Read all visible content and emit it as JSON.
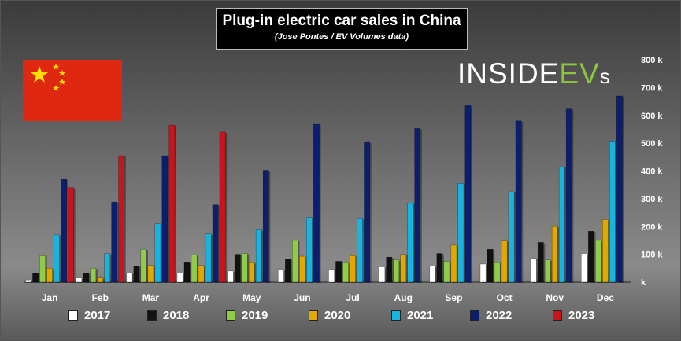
{
  "header": {
    "title": "Plug-in electric car sales in China",
    "subtitle": "(Jose Pontes / EV Volumes data)"
  },
  "logo": {
    "part1": "INSIDE",
    "part2": "EV",
    "part3": "s"
  },
  "icons": {
    "flag": "china-flag-icon"
  },
  "chart_data": {
    "type": "bar",
    "categories": [
      "Jan",
      "Feb",
      "Mar",
      "Apr",
      "May",
      "Jun",
      "Jul",
      "Aug",
      "Sep",
      "Oct",
      "Nov",
      "Dec"
    ],
    "y_unit_suffix": " k",
    "ylim": [
      0,
      800
    ],
    "yticks": [
      0,
      100,
      200,
      300,
      400,
      500,
      600,
      700,
      800
    ],
    "ytick_labels": [
      "k",
      "100 k",
      "200 k",
      "300 k",
      "400 k",
      "500 k",
      "600 k",
      "700 k",
      "800 k"
    ],
    "y_axis_side": "right",
    "legend_position": "bottom",
    "series": [
      {
        "name": "2017",
        "color": "#ffffff",
        "values": [
          8,
          15,
          33,
          32,
          40,
          45,
          45,
          55,
          58,
          65,
          85,
          103
        ]
      },
      {
        "name": "2018",
        "color": "#111111",
        "values": [
          33,
          33,
          58,
          70,
          100,
          83,
          75,
          90,
          103,
          118,
          143,
          183
        ]
      },
      {
        "name": "2019",
        "color": "#8fcc4a",
        "values": [
          95,
          50,
          118,
          98,
          103,
          150,
          70,
          80,
          75,
          70,
          80,
          150
        ]
      },
      {
        "name": "2020",
        "color": "#e0a800",
        "values": [
          50,
          15,
          60,
          60,
          70,
          93,
          95,
          100,
          133,
          148,
          200,
          225
        ]
      },
      {
        "name": "2021",
        "color": "#18b4e0",
        "values": [
          170,
          103,
          210,
          173,
          188,
          233,
          228,
          283,
          355,
          325,
          415,
          505
        ]
      },
      {
        "name": "2022",
        "color": "#0b1f6e",
        "values": [
          370,
          288,
          455,
          278,
          400,
          568,
          503,
          553,
          635,
          580,
          623,
          670
        ]
      },
      {
        "name": "2023",
        "color": "#c8141c",
        "values": [
          340,
          455,
          565,
          540,
          null,
          null,
          null,
          null,
          null,
          null,
          null,
          null
        ]
      }
    ]
  }
}
